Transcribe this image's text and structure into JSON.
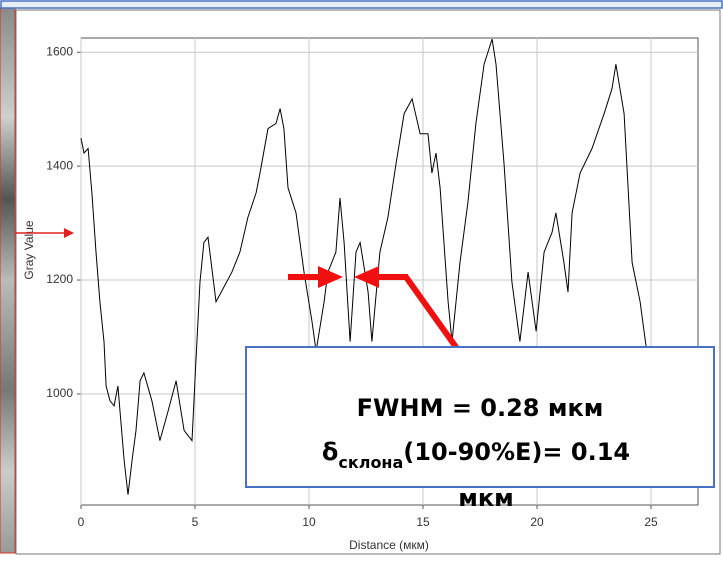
{
  "chart_data": {
    "type": "line",
    "xlabel": "Distance (мкм)",
    "ylabel": "Gray Value",
    "x": [
      0,
      0.13,
      0.31,
      0.48,
      0.66,
      0.83,
      1.01,
      1.1,
      1.27,
      1.45,
      1.62,
      1.89,
      2.06,
      2.24,
      2.41,
      2.59,
      2.76,
      3.11,
      3.46,
      3.82,
      4.17,
      4.52,
      4.87,
      5.04,
      5.22,
      5.39,
      5.57,
      5.92,
      6.27,
      6.62,
      6.97,
      7.32,
      7.68,
      7.85,
      8.2,
      8.55,
      8.73,
      8.9,
      9.08,
      9.43,
      9.78,
      10.13,
      10.31,
      10.66,
      10.83,
      11.18,
      11.36,
      11.54,
      11.8,
      12.06,
      12.24,
      12.59,
      12.76,
      13.11,
      13.46,
      13.82,
      14.17,
      14.52,
      14.87,
      15.22,
      15.39,
      15.57,
      15.75,
      16.1,
      16.27,
      16.62,
      16.97,
      17.32,
      17.68,
      18.03,
      18.2,
      18.55,
      18.9,
      19.25,
      19.61,
      19.96,
      20.31,
      20.66,
      20.83,
      21.18,
      21.36,
      21.54,
      21.89,
      22.41,
      22.94,
      23.29,
      23.46,
      23.82,
      24.17,
      24.52,
      24.87,
      25.22,
      25.57,
      25.92,
      26.27,
      26.62,
      26.97
    ],
    "values": [
      1449,
      1423,
      1431,
      1353,
      1249,
      1162,
      1092,
      1014,
      988,
      979,
      1014,
      884,
      823,
      884,
      936,
      1023,
      1037,
      988,
      918,
      970,
      1023,
      936,
      918,
      1057,
      1197,
      1266,
      1275,
      1162,
      1188,
      1214,
      1249,
      1310,
      1353,
      1388,
      1466,
      1475,
      1501,
      1466,
      1362,
      1318,
      1214,
      1127,
      1075,
      1162,
      1214,
      1249,
      1344,
      1266,
      1092,
      1249,
      1266,
      1179,
      1092,
      1249,
      1310,
      1405,
      1492,
      1518,
      1457,
      1457,
      1388,
      1423,
      1362,
      1162,
      1092,
      1231,
      1336,
      1475,
      1579,
      1623,
      1579,
      1405,
      1197,
      1092,
      1214,
      1110,
      1249,
      1284,
      1318,
      1231,
      1179,
      1318,
      1388,
      1431,
      1492,
      1536,
      1579,
      1492,
      1231,
      1162,
      1057,
      1057,
      1040,
      1040,
      1066,
      1066,
      1075
    ],
    "color": "#000000",
    "xlim": [
      0,
      27.06
    ],
    "ylim": [
      805,
      1625
    ],
    "xticks": [
      0,
      5,
      10,
      15,
      20,
      25
    ],
    "yticks": [
      1000,
      1200,
      1400,
      1600
    ],
    "grid": true,
    "annotation": {
      "line1": "FWHM = 0.28 мкм",
      "delta": "δ",
      "subscript": "склона",
      "rest": "(10-90%E)= 0.14",
      "line3": "мкм"
    }
  }
}
